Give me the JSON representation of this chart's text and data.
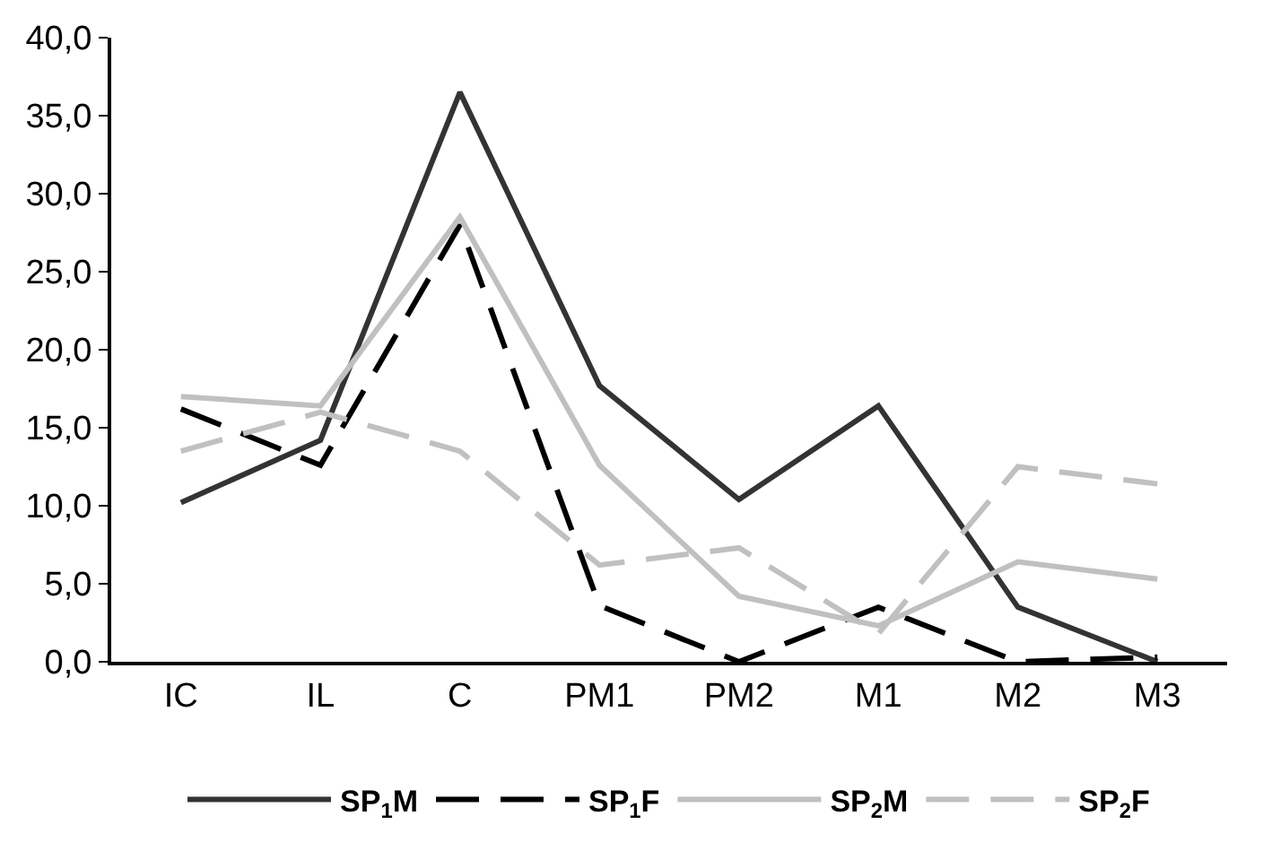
{
  "chart_data": {
    "type": "line",
    "categories": [
      "IC",
      "IL",
      "C",
      "PM1",
      "PM2",
      "M1",
      "M2",
      "M3"
    ],
    "series": [
      {
        "name": "SP$_{1}$M",
        "color": "#333333",
        "line_style": "solid",
        "values": [
          10.2,
          14.2,
          36.5,
          17.7,
          10.4,
          16.4,
          3.5,
          0.0
        ]
      },
      {
        "name": "SP$_{1}$F",
        "color": "#000000",
        "line_style": "dashed",
        "values": [
          16.2,
          12.6,
          28.0,
          3.6,
          0.0,
          3.5,
          0.0,
          0.3
        ]
      },
      {
        "name": "SP$_{2}$M",
        "color": "#c0c0c0",
        "line_style": "solid",
        "values": [
          17.0,
          16.4,
          28.5,
          12.6,
          4.2,
          2.3,
          6.4,
          5.3
        ]
      },
      {
        "name": "SP$_{2}$F",
        "color": "#c0c0c0",
        "line_style": "dashed",
        "values": [
          13.5,
          16.0,
          13.5,
          6.2,
          7.3,
          1.8,
          12.5,
          11.4
        ]
      }
    ],
    "ylim": [
      0,
      40
    ],
    "yticks": [
      {
        "value": 0,
        "label": "0,0"
      },
      {
        "value": 5,
        "label": "5,0"
      },
      {
        "value": 10,
        "label": "10,0"
      },
      {
        "value": 15,
        "label": "15,0"
      },
      {
        "value": 20,
        "label": "20,0"
      },
      {
        "value": 25,
        "label": "25,0"
      },
      {
        "value": 30,
        "label": "30,0"
      },
      {
        "value": 35,
        "label": "35,0"
      },
      {
        "value": 40,
        "label": "40,0"
      }
    ],
    "grid": false,
    "legend": "bottom",
    "marker": "none"
  }
}
